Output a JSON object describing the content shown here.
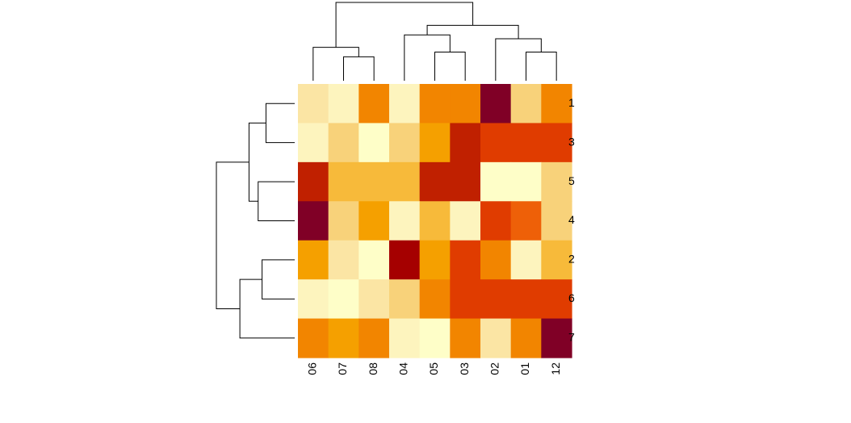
{
  "chart_data": {
    "type": "heatmap",
    "title": "",
    "xlabel": "",
    "ylabel": "",
    "columns": [
      "06",
      "07",
      "08",
      "04",
      "05",
      "03",
      "02",
      "01",
      "12"
    ],
    "rows": [
      "1",
      "3",
      "5",
      "4",
      "2",
      "6",
      "7"
    ],
    "palette": [
      "#800026",
      "#A50000",
      "#C02000",
      "#E03C00",
      "#EE6008",
      "#F28500",
      "#F5A000",
      "#F7BA3A",
      "#F8D27A",
      "#FBE5A4",
      "#FDF4BE",
      "#FEFEC8"
    ],
    "values": [
      [
        9,
        10,
        5,
        10,
        5,
        5,
        0,
        8,
        5
      ],
      [
        10,
        8,
        11,
        8,
        6,
        2,
        3,
        3,
        3
      ],
      [
        2,
        7,
        7,
        7,
        2,
        2,
        11,
        11,
        8
      ],
      [
        0,
        8,
        6,
        10,
        7,
        10,
        3,
        4,
        8
      ],
      [
        6,
        9,
        11,
        1,
        6,
        3,
        5,
        10,
        7
      ],
      [
        10,
        11,
        9,
        8,
        5,
        3,
        3,
        3,
        3
      ],
      [
        5,
        6,
        5,
        10,
        11,
        5,
        9,
        5,
        0
      ]
    ],
    "column_dendrogram": {
      "leaves": [
        "06",
        "07",
        "08",
        "04",
        "05",
        "03",
        "02",
        "01",
        "12"
      ],
      "merges": [
        {
          "a": "07",
          "b": "08",
          "height": 0.25
        },
        {
          "a": "05",
          "b": "03",
          "height": 0.3
        },
        {
          "a": "01",
          "b": "12",
          "height": 0.3
        },
        {
          "a": "06",
          "b": "07-08",
          "height": 0.35
        },
        {
          "a": "02",
          "b": "01-12",
          "height": 0.44
        },
        {
          "a": "04",
          "b": "05-03",
          "height": 0.48
        },
        {
          "a": "04-05-03",
          "b": "02-01-12",
          "height": 0.58
        },
        {
          "a": "06-07-08",
          "b": "04-05-03-02-01-12",
          "height": 0.82
        }
      ]
    },
    "row_dendrogram": {
      "leaves": [
        "1",
        "3",
        "5",
        "4",
        "2",
        "6",
        "7"
      ],
      "merges": [
        {
          "a": "1",
          "b": "3",
          "height": 0.22
        },
        {
          "a": "5",
          "b": "4",
          "height": 0.28
        },
        {
          "a": "1-3",
          "b": "5-4",
          "height": 0.35
        },
        {
          "a": "2",
          "b": "6",
          "height": 0.25
        },
        {
          "a": "7",
          "b": "2-6",
          "height": 0.42
        },
        {
          "a": "1-3-5-4",
          "b": "7-2-6",
          "height": 0.6
        }
      ]
    },
    "legend": "none",
    "grid": false
  }
}
